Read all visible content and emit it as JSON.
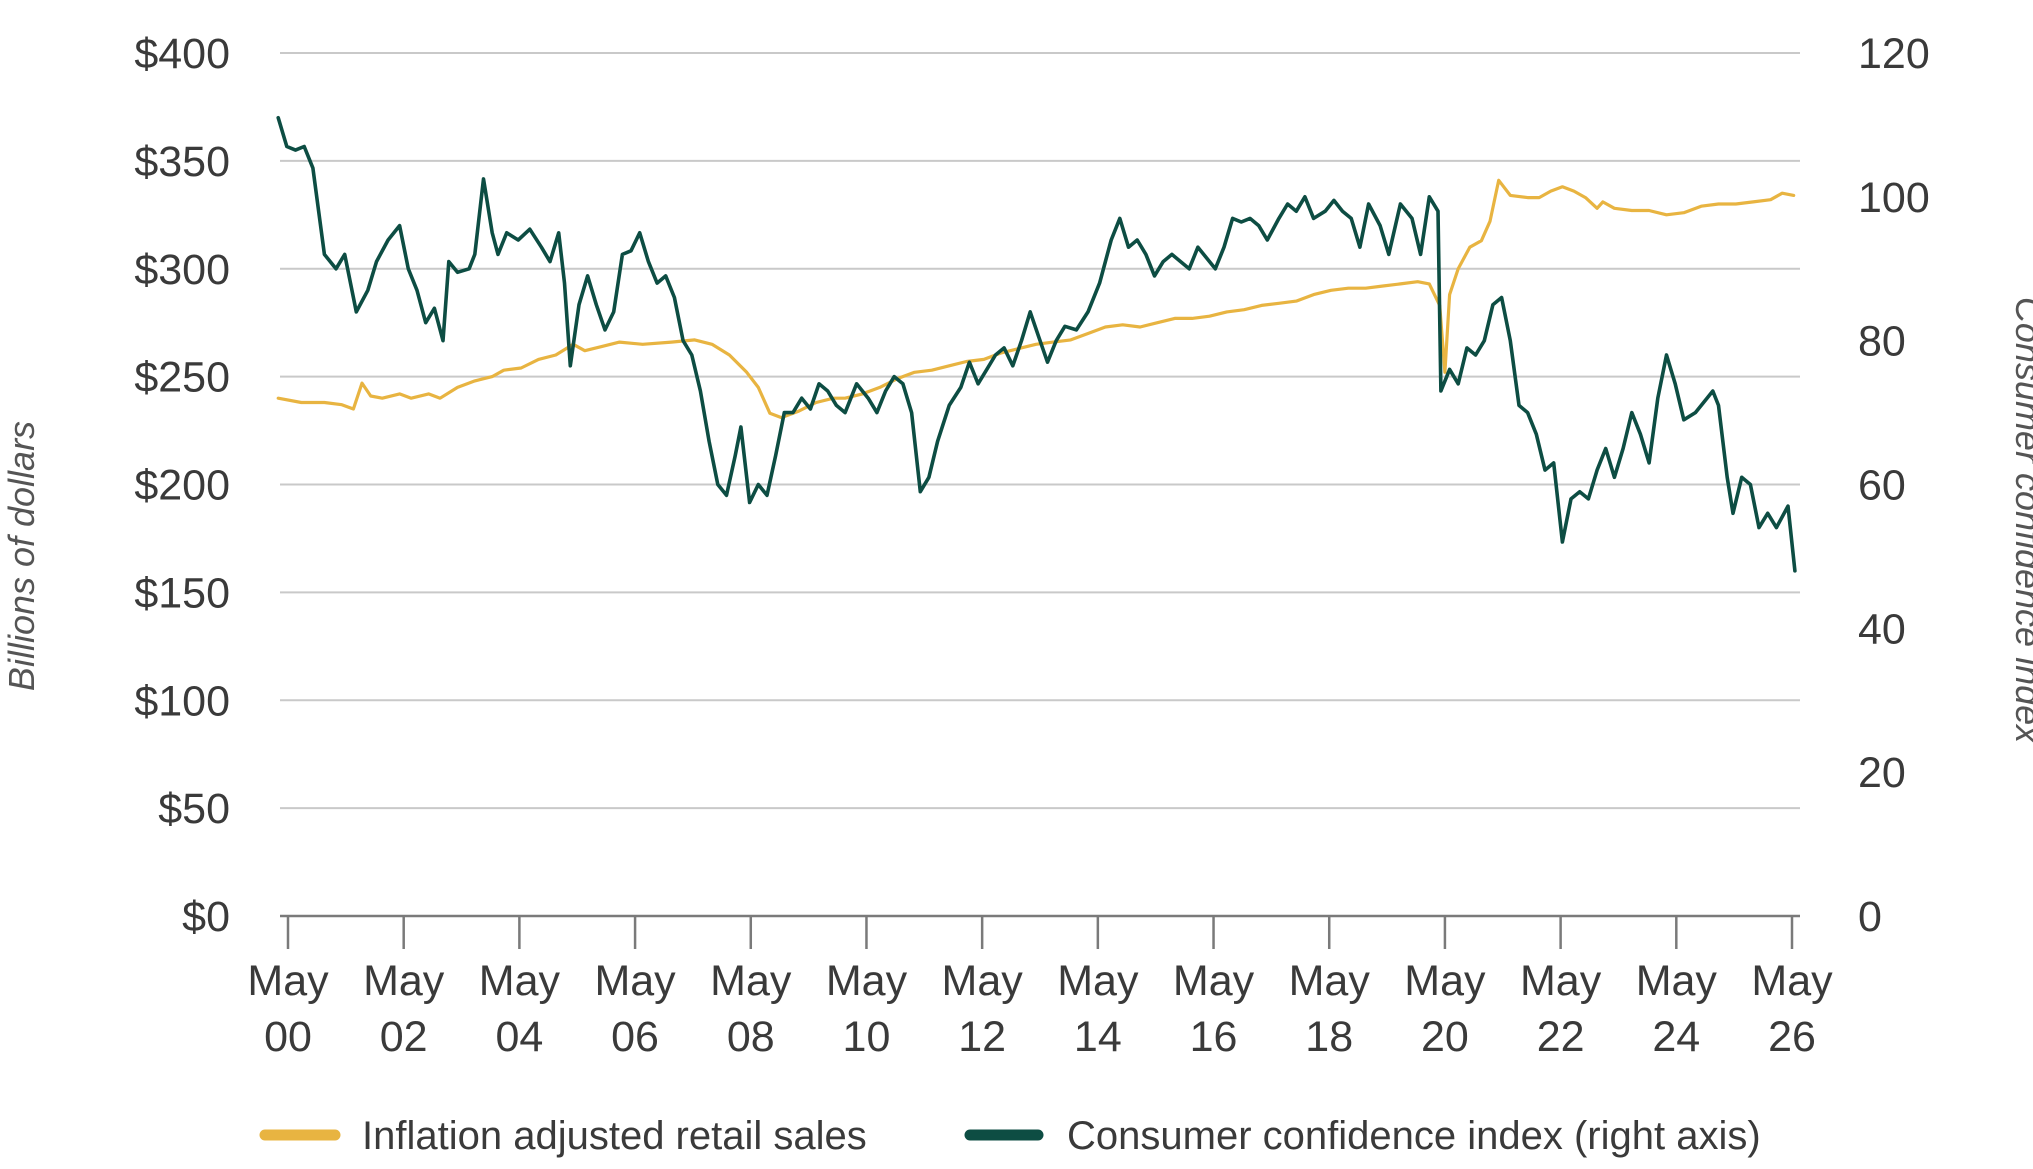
{
  "chart_data": {
    "type": "line",
    "title": "",
    "xlabel": "",
    "ylabel": "Billions of dollars",
    "y2label": "Consumer confidence index",
    "grid": true,
    "legend_position": "bottom",
    "x_range": [
      2000.37,
      2026.5
    ],
    "y_left": {
      "range": [
        0,
        400
      ],
      "ticks": [
        0,
        50,
        100,
        150,
        200,
        250,
        300,
        350,
        400
      ],
      "tick_labels": [
        "$0",
        "$50",
        "$100",
        "$150",
        "$200",
        "$250",
        "$300",
        "$350",
        "$400"
      ]
    },
    "y_right": {
      "range": [
        0,
        120
      ],
      "ticks": [
        0,
        20,
        40,
        60,
        80,
        100,
        120
      ],
      "tick_labels": [
        "0",
        "20",
        "40",
        "60",
        "80",
        "100",
        "120"
      ]
    },
    "x_ticks": [
      {
        "x": 2000.37,
        "month": "May",
        "year": "00"
      },
      {
        "x": 2002.37,
        "month": "May",
        "year": "02"
      },
      {
        "x": 2004.37,
        "month": "May",
        "year": "04"
      },
      {
        "x": 2006.37,
        "month": "May",
        "year": "06"
      },
      {
        "x": 2008.37,
        "month": "May",
        "year": "08"
      },
      {
        "x": 2010.37,
        "month": "May",
        "year": "10"
      },
      {
        "x": 2012.37,
        "month": "May",
        "year": "12"
      },
      {
        "x": 2014.37,
        "month": "May",
        "year": "14"
      },
      {
        "x": 2016.37,
        "month": "May",
        "year": "16"
      },
      {
        "x": 2018.37,
        "month": "May",
        "year": "18"
      },
      {
        "x": 2020.37,
        "month": "May",
        "year": "20"
      },
      {
        "x": 2022.37,
        "month": "May",
        "year": "22"
      },
      {
        "x": 2024.37,
        "month": "May",
        "year": "24"
      },
      {
        "x": 2026.37,
        "month": "May",
        "year": "26"
      }
    ],
    "series": [
      {
        "name": "Inflation adjusted retail sales",
        "color": "#e8b441",
        "axis": "left",
        "points": [
          [
            2000.2,
            240
          ],
          [
            2000.6,
            238
          ],
          [
            2001.0,
            238
          ],
          [
            2001.3,
            237
          ],
          [
            2001.5,
            235
          ],
          [
            2001.65,
            247
          ],
          [
            2001.8,
            241
          ],
          [
            2002.0,
            240
          ],
          [
            2002.3,
            242
          ],
          [
            2002.5,
            240
          ],
          [
            2002.8,
            242
          ],
          [
            2003.0,
            240
          ],
          [
            2003.3,
            245
          ],
          [
            2003.6,
            248
          ],
          [
            2003.9,
            250
          ],
          [
            2004.1,
            253
          ],
          [
            2004.4,
            254
          ],
          [
            2004.7,
            258
          ],
          [
            2005.0,
            260
          ],
          [
            2005.3,
            265
          ],
          [
            2005.5,
            262
          ],
          [
            2005.8,
            264
          ],
          [
            2006.1,
            266
          ],
          [
            2006.5,
            265
          ],
          [
            2007.0,
            266
          ],
          [
            2007.4,
            267
          ],
          [
            2007.7,
            265
          ],
          [
            2008.0,
            260
          ],
          [
            2008.3,
            252
          ],
          [
            2008.5,
            245
          ],
          [
            2008.7,
            233
          ],
          [
            2008.9,
            231
          ],
          [
            2009.2,
            234
          ],
          [
            2009.5,
            238
          ],
          [
            2009.8,
            240
          ],
          [
            2010.0,
            240
          ],
          [
            2010.3,
            242
          ],
          [
            2010.6,
            245
          ],
          [
            2010.9,
            249
          ],
          [
            2011.2,
            252
          ],
          [
            2011.5,
            253
          ],
          [
            2011.8,
            255
          ],
          [
            2012.1,
            257
          ],
          [
            2012.4,
            258
          ],
          [
            2012.7,
            261
          ],
          [
            2013.0,
            263
          ],
          [
            2013.3,
            265
          ],
          [
            2013.6,
            266
          ],
          [
            2013.9,
            267
          ],
          [
            2014.2,
            270
          ],
          [
            2014.5,
            273
          ],
          [
            2014.8,
            274
          ],
          [
            2015.1,
            273
          ],
          [
            2015.4,
            275
          ],
          [
            2015.7,
            277
          ],
          [
            2016.0,
            277
          ],
          [
            2016.3,
            278
          ],
          [
            2016.6,
            280
          ],
          [
            2016.9,
            281
          ],
          [
            2017.2,
            283
          ],
          [
            2017.5,
            284
          ],
          [
            2017.8,
            285
          ],
          [
            2018.1,
            288
          ],
          [
            2018.4,
            290
          ],
          [
            2018.7,
            291
          ],
          [
            2019.0,
            291
          ],
          [
            2019.3,
            292
          ],
          [
            2019.6,
            293
          ],
          [
            2019.9,
            294
          ],
          [
            2020.1,
            293
          ],
          [
            2020.28,
            283
          ],
          [
            2020.37,
            252
          ],
          [
            2020.45,
            288
          ],
          [
            2020.6,
            300
          ],
          [
            2020.8,
            310
          ],
          [
            2021.0,
            313
          ],
          [
            2021.15,
            322
          ],
          [
            2021.3,
            341
          ],
          [
            2021.5,
            334
          ],
          [
            2021.8,
            333
          ],
          [
            2022.0,
            333
          ],
          [
            2022.2,
            336
          ],
          [
            2022.4,
            338
          ],
          [
            2022.6,
            336
          ],
          [
            2022.8,
            333
          ],
          [
            2023.0,
            328
          ],
          [
            2023.1,
            331
          ],
          [
            2023.3,
            328
          ],
          [
            2023.6,
            327
          ],
          [
            2023.9,
            327
          ],
          [
            2024.2,
            325
          ],
          [
            2024.5,
            326
          ],
          [
            2024.8,
            329
          ],
          [
            2025.1,
            330
          ],
          [
            2025.4,
            330
          ],
          [
            2025.7,
            331
          ],
          [
            2026.0,
            332
          ],
          [
            2026.2,
            335
          ],
          [
            2026.4,
            334
          ]
        ]
      },
      {
        "name": "Consumer confidence index (right axis)",
        "color": "#0d4d43",
        "axis": "right",
        "points": [
          [
            2000.2,
            111
          ],
          [
            2000.35,
            107
          ],
          [
            2000.5,
            106.5
          ],
          [
            2000.65,
            107
          ],
          [
            2000.8,
            104
          ],
          [
            2001.0,
            92
          ],
          [
            2001.2,
            90
          ],
          [
            2001.35,
            92
          ],
          [
            2001.55,
            84
          ],
          [
            2001.75,
            87
          ],
          [
            2001.9,
            91
          ],
          [
            2002.1,
            94
          ],
          [
            2002.3,
            96
          ],
          [
            2002.45,
            90
          ],
          [
            2002.6,
            87
          ],
          [
            2002.75,
            82.5
          ],
          [
            2002.9,
            84.5
          ],
          [
            2003.05,
            80
          ],
          [
            2003.15,
            91
          ],
          [
            2003.3,
            89.5
          ],
          [
            2003.5,
            90
          ],
          [
            2003.6,
            92
          ],
          [
            2003.75,
            102.5
          ],
          [
            2003.9,
            95
          ],
          [
            2004.0,
            92
          ],
          [
            2004.15,
            95
          ],
          [
            2004.35,
            94
          ],
          [
            2004.55,
            95.5
          ],
          [
            2004.75,
            93
          ],
          [
            2004.9,
            91
          ],
          [
            2005.05,
            95
          ],
          [
            2005.15,
            88
          ],
          [
            2005.25,
            76.5
          ],
          [
            2005.4,
            85
          ],
          [
            2005.55,
            89
          ],
          [
            2005.7,
            85
          ],
          [
            2005.85,
            81.5
          ],
          [
            2006.0,
            84
          ],
          [
            2006.15,
            92
          ],
          [
            2006.3,
            92.5
          ],
          [
            2006.45,
            95
          ],
          [
            2006.6,
            91
          ],
          [
            2006.75,
            88
          ],
          [
            2006.9,
            89
          ],
          [
            2007.05,
            86
          ],
          [
            2007.2,
            80
          ],
          [
            2007.35,
            78
          ],
          [
            2007.5,
            73
          ],
          [
            2007.65,
            66
          ],
          [
            2007.8,
            60
          ],
          [
            2007.95,
            58.5
          ],
          [
            2008.1,
            64
          ],
          [
            2008.2,
            68
          ],
          [
            2008.35,
            57.5
          ],
          [
            2008.5,
            60
          ],
          [
            2008.65,
            58.5
          ],
          [
            2008.8,
            64
          ],
          [
            2008.95,
            70
          ],
          [
            2009.1,
            70
          ],
          [
            2009.25,
            72
          ],
          [
            2009.4,
            70.5
          ],
          [
            2009.55,
            74
          ],
          [
            2009.7,
            73
          ],
          [
            2009.85,
            71
          ],
          [
            2010.0,
            70
          ],
          [
            2010.2,
            74
          ],
          [
            2010.4,
            72
          ],
          [
            2010.55,
            70
          ],
          [
            2010.7,
            73
          ],
          [
            2010.85,
            75
          ],
          [
            2011.0,
            74
          ],
          [
            2011.15,
            70
          ],
          [
            2011.3,
            59
          ],
          [
            2011.45,
            61
          ],
          [
            2011.6,
            66
          ],
          [
            2011.8,
            71
          ],
          [
            2012.0,
            73.5
          ],
          [
            2012.15,
            77
          ],
          [
            2012.3,
            74
          ],
          [
            2012.45,
            76
          ],
          [
            2012.6,
            78
          ],
          [
            2012.75,
            79
          ],
          [
            2012.9,
            76.5
          ],
          [
            2013.05,
            80
          ],
          [
            2013.2,
            84
          ],
          [
            2013.35,
            80.5
          ],
          [
            2013.5,
            77
          ],
          [
            2013.65,
            80
          ],
          [
            2013.8,
            82
          ],
          [
            2014.0,
            81.5
          ],
          [
            2014.2,
            84
          ],
          [
            2014.4,
            88
          ],
          [
            2014.6,
            94
          ],
          [
            2014.75,
            97
          ],
          [
            2014.9,
            93
          ],
          [
            2015.05,
            94
          ],
          [
            2015.2,
            92
          ],
          [
            2015.35,
            89
          ],
          [
            2015.5,
            91
          ],
          [
            2015.65,
            92
          ],
          [
            2015.8,
            91
          ],
          [
            2015.95,
            90
          ],
          [
            2016.1,
            93
          ],
          [
            2016.25,
            91.5
          ],
          [
            2016.4,
            90
          ],
          [
            2016.55,
            93
          ],
          [
            2016.7,
            97
          ],
          [
            2016.85,
            96.5
          ],
          [
            2017.0,
            97
          ],
          [
            2017.15,
            96
          ],
          [
            2017.3,
            94
          ],
          [
            2017.5,
            97
          ],
          [
            2017.65,
            99
          ],
          [
            2017.8,
            98
          ],
          [
            2017.95,
            100
          ],
          [
            2018.1,
            97
          ],
          [
            2018.3,
            98
          ],
          [
            2018.45,
            99.5
          ],
          [
            2018.6,
            98
          ],
          [
            2018.75,
            97
          ],
          [
            2018.9,
            93
          ],
          [
            2019.05,
            99
          ],
          [
            2019.25,
            96
          ],
          [
            2019.4,
            92
          ],
          [
            2019.6,
            99
          ],
          [
            2019.8,
            97
          ],
          [
            2019.95,
            92
          ],
          [
            2020.1,
            100
          ],
          [
            2020.25,
            98
          ],
          [
            2020.3,
            73
          ],
          [
            2020.45,
            76
          ],
          [
            2020.6,
            74
          ],
          [
            2020.75,
            79
          ],
          [
            2020.9,
            78
          ],
          [
            2021.05,
            80
          ],
          [
            2021.2,
            85
          ],
          [
            2021.35,
            86
          ],
          [
            2021.5,
            80
          ],
          [
            2021.65,
            71
          ],
          [
            2021.8,
            70
          ],
          [
            2021.95,
            67
          ],
          [
            2022.1,
            62
          ],
          [
            2022.25,
            63
          ],
          [
            2022.4,
            52
          ],
          [
            2022.55,
            58
          ],
          [
            2022.7,
            59
          ],
          [
            2022.85,
            58
          ],
          [
            2023.0,
            62
          ],
          [
            2023.15,
            65
          ],
          [
            2023.3,
            61
          ],
          [
            2023.45,
            65
          ],
          [
            2023.6,
            70
          ],
          [
            2023.75,
            67
          ],
          [
            2023.9,
            63
          ],
          [
            2024.05,
            72
          ],
          [
            2024.2,
            78
          ],
          [
            2024.35,
            74
          ],
          [
            2024.5,
            69
          ],
          [
            2024.7,
            70
          ],
          [
            2024.9,
            72
          ],
          [
            2025.0,
            73
          ],
          [
            2025.1,
            71
          ],
          [
            2025.25,
            61
          ],
          [
            2025.35,
            56
          ],
          [
            2025.5,
            61
          ],
          [
            2025.65,
            60
          ],
          [
            2025.8,
            54
          ],
          [
            2025.95,
            56
          ],
          [
            2026.1,
            54
          ],
          [
            2026.3,
            57
          ],
          [
            2026.42,
            48
          ]
        ]
      }
    ]
  }
}
